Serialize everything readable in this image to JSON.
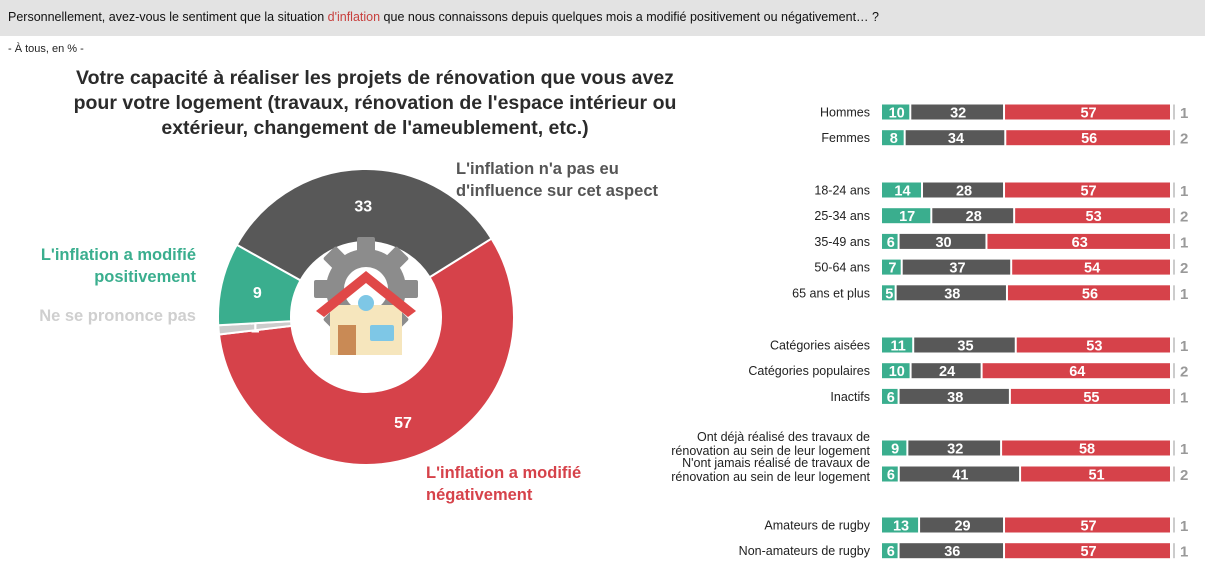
{
  "question": {
    "before": "Personnellement, avez-vous le sentiment que la situation ",
    "highlight": "d'inflation",
    "after": " que nous connaissons depuis quelques mois a modifié positivement ou négativement… ?"
  },
  "basis": "- À tous, en % -",
  "colors": {
    "positive": "#3aae8e",
    "neutral": "#585858",
    "negative": "#d6424a",
    "npp": "#cccccc",
    "npp_text": "#999999"
  },
  "chart_data": [
    {
      "type": "pie",
      "title": "Votre capacité à réaliser les projets de rénovation que vous avez pour votre logement (travaux, rénovation de l'espace intérieur ou extérieur, changement de l'ameublement, etc.)",
      "slices": [
        {
          "key": "negative",
          "label": "L'inflation a modifié négativement",
          "value": 57
        },
        {
          "key": "npp",
          "label": "Ne se prononce pas",
          "value": 1
        },
        {
          "key": "positive",
          "label": "L'inflation a modifié positivement",
          "value": 9
        },
        {
          "key": "neutral",
          "label": "L'inflation n'a pas eu d'influence sur cet aspect",
          "value": 33
        }
      ],
      "center_icon": "house-gear-icon"
    },
    {
      "type": "bar",
      "orientation": "horizontal",
      "stacked": true,
      "series_order": [
        "positive",
        "neutral",
        "negative",
        "npp"
      ],
      "groups": [
        {
          "rows": [
            {
              "label": "Hommes",
              "values": [
                10,
                32,
                57,
                1
              ]
            },
            {
              "label": "Femmes",
              "values": [
                8,
                34,
                56,
                2
              ]
            }
          ]
        },
        {
          "rows": [
            {
              "label": "18-24 ans",
              "values": [
                14,
                28,
                57,
                1
              ]
            },
            {
              "label": "25-34 ans",
              "values": [
                17,
                28,
                53,
                2
              ]
            },
            {
              "label": "35-49 ans",
              "values": [
                6,
                30,
                63,
                1
              ]
            },
            {
              "label": "50-64 ans",
              "values": [
                7,
                37,
                54,
                2
              ]
            },
            {
              "label": "65 ans et plus",
              "values": [
                5,
                38,
                56,
                1
              ]
            }
          ]
        },
        {
          "rows": [
            {
              "label": "Catégories aisées",
              "values": [
                11,
                35,
                53,
                1
              ]
            },
            {
              "label": "Catégories populaires",
              "values": [
                10,
                24,
                64,
                2
              ]
            },
            {
              "label": "Inactifs",
              "values": [
                6,
                38,
                55,
                1
              ]
            }
          ]
        },
        {
          "rows": [
            {
              "label": "Ont déjà réalisé des travaux de rénovation au sein de leur logement",
              "label_lines": [
                "Ont déjà réalisé des travaux de",
                "rénovation au sein de leur logement"
              ],
              "values": [
                9,
                32,
                58,
                1
              ]
            },
            {
              "label": "N'ont jamais réalisé de travaux de rénovation au sein de leur logement",
              "label_lines": [
                "N'ont jamais réalisé de travaux de",
                "rénovation au sein de leur logement"
              ],
              "values": [
                6,
                41,
                51,
                2
              ]
            }
          ]
        },
        {
          "rows": [
            {
              "label": "Amateurs de rugby",
              "values": [
                13,
                29,
                57,
                1
              ]
            },
            {
              "label": "Non-amateurs de rugby",
              "values": [
                6,
                36,
                57,
                1
              ]
            }
          ]
        }
      ]
    }
  ]
}
